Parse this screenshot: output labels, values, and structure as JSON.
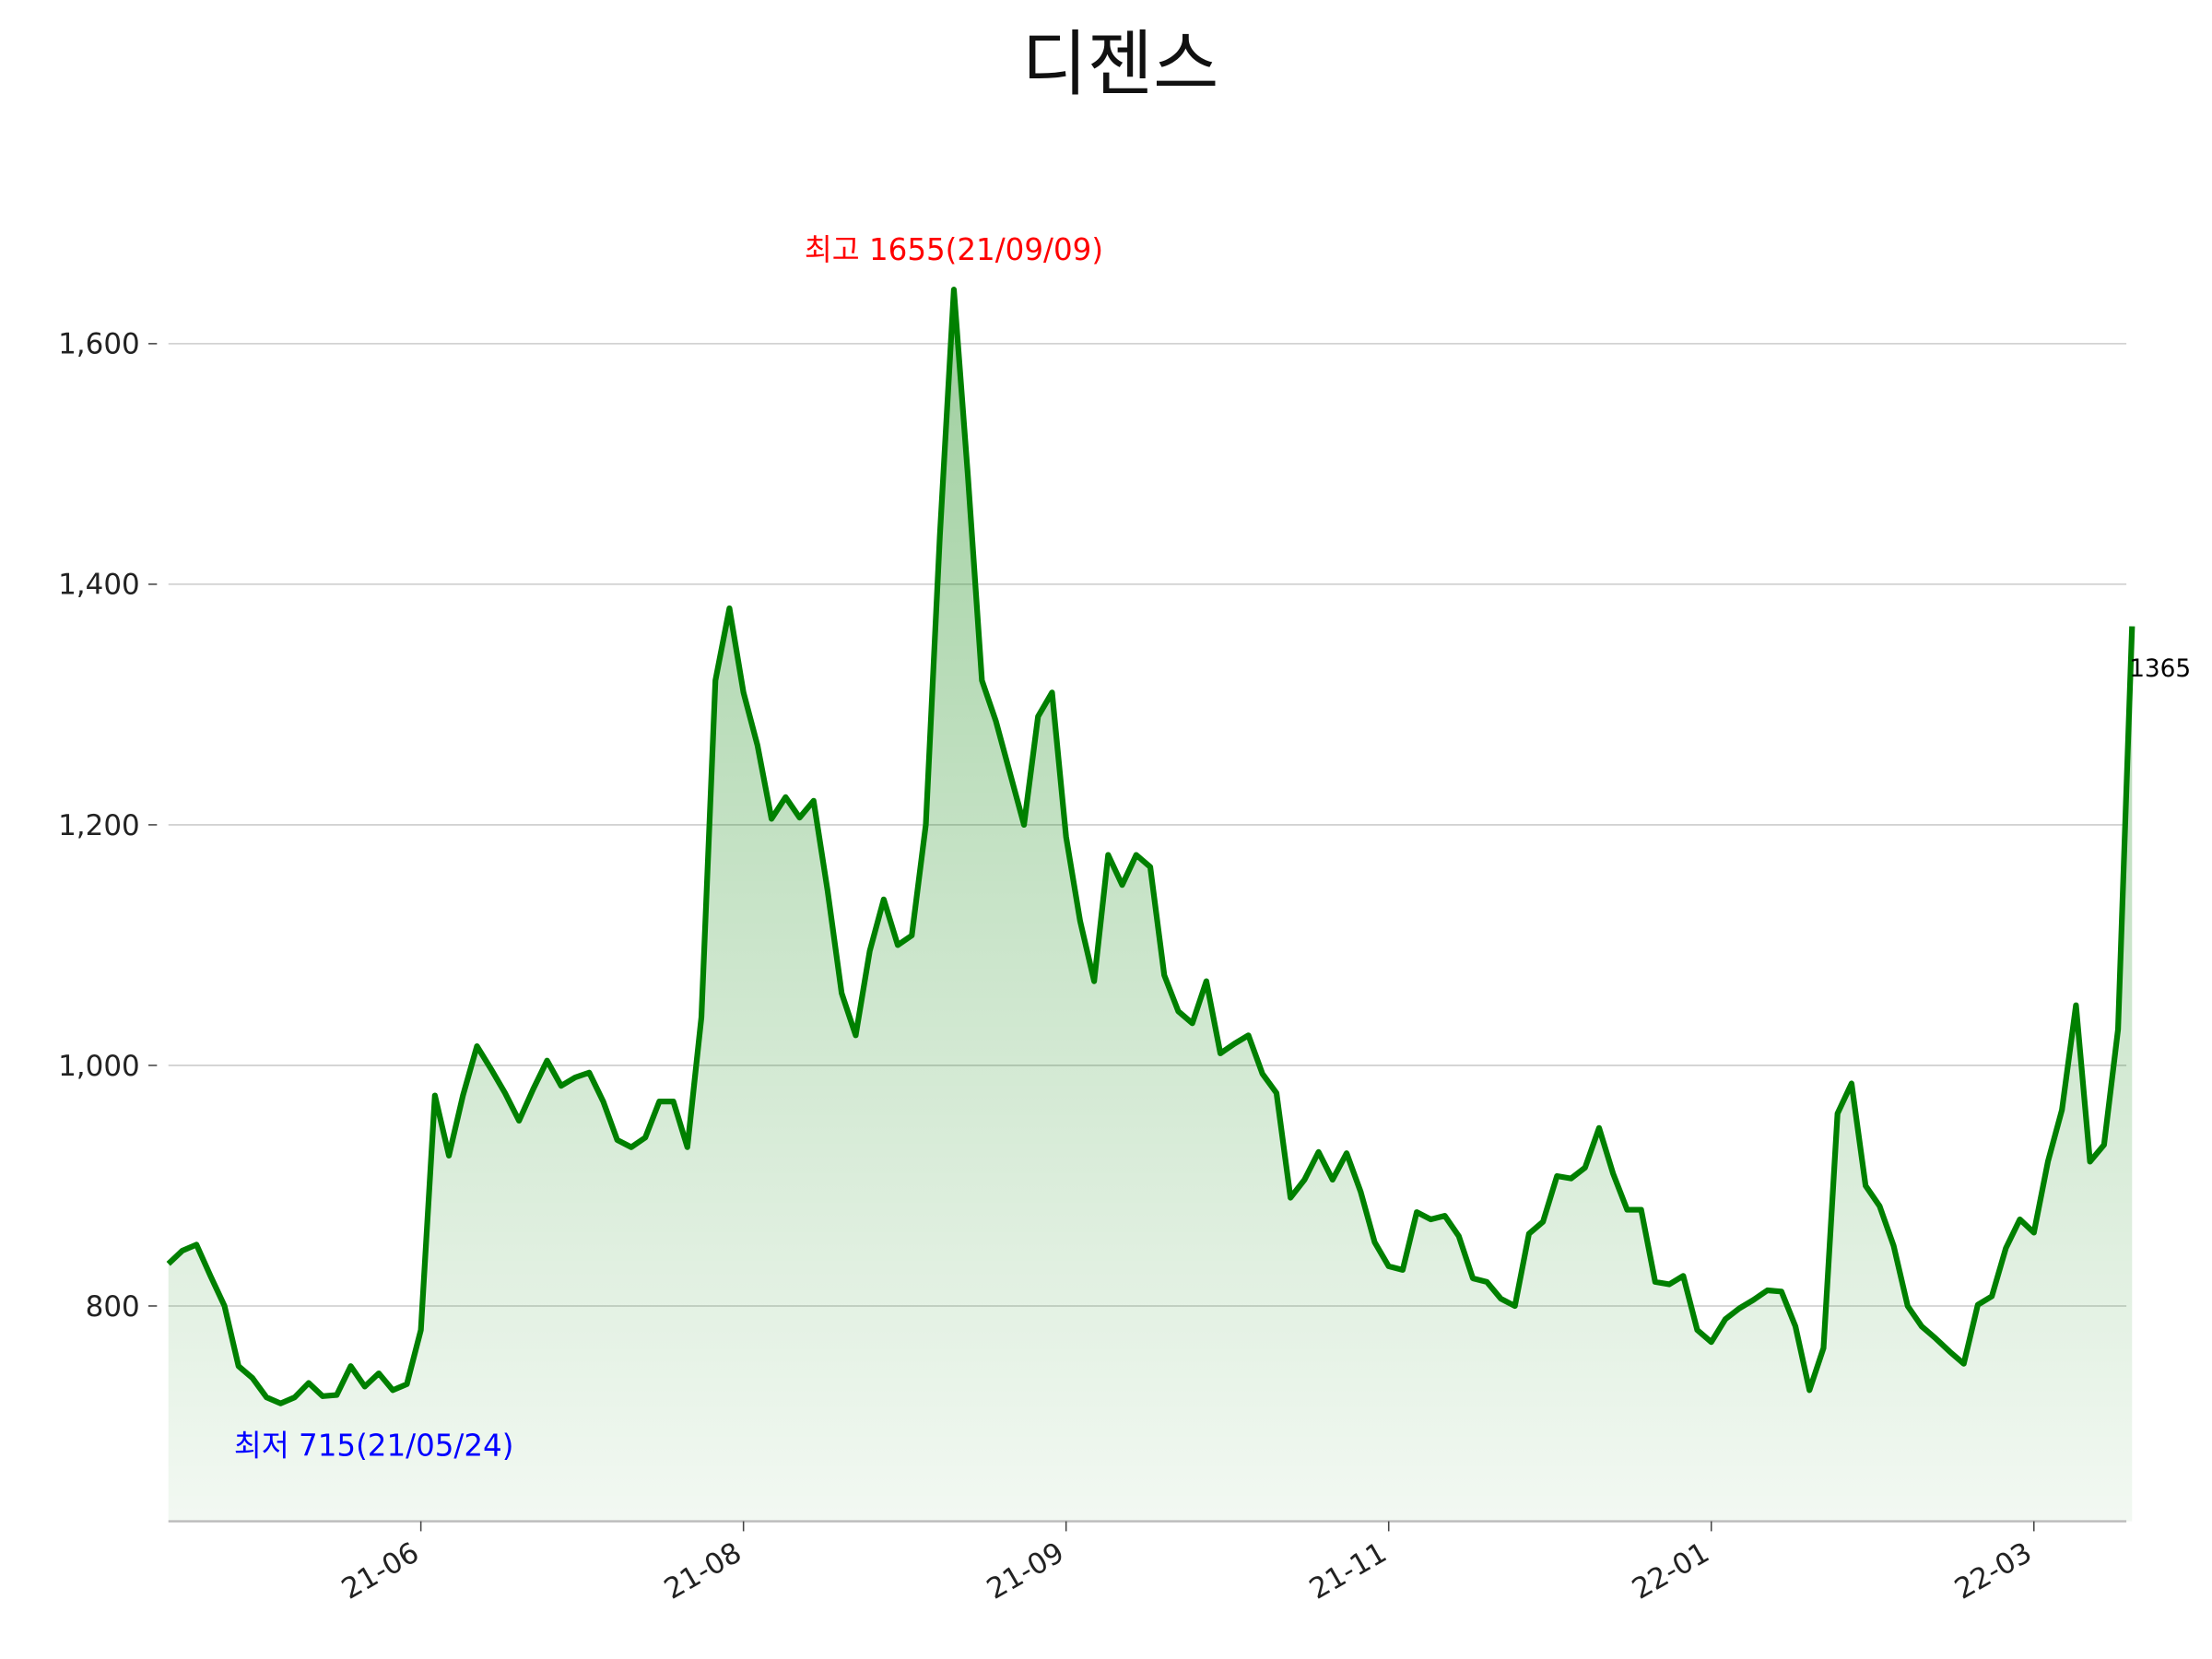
{
  "chart_data": {
    "type": "line",
    "title": "디젠스",
    "categories": [
      null,
      null,
      null,
      null,
      null,
      null,
      null,
      null,
      null,
      null,
      null,
      null,
      null,
      null,
      null,
      null,
      null,
      null,
      "21-06",
      null,
      null,
      null,
      null,
      null,
      null,
      null,
      null,
      null,
      null,
      null,
      null,
      null,
      null,
      null,
      null,
      null,
      null,
      null,
      null,
      null,
      null,
      "21-08",
      null,
      null,
      null,
      null,
      null,
      null,
      null,
      null,
      null,
      null,
      null,
      null,
      null,
      null,
      null,
      null,
      null,
      null,
      null,
      null,
      null,
      null,
      "21-09",
      null,
      null,
      null,
      null,
      null,
      null,
      null,
      null,
      null,
      null,
      null,
      null,
      null,
      null,
      null,
      null,
      null,
      null,
      null,
      null,
      null,
      null,
      "21-11",
      null,
      null,
      null,
      null,
      null,
      null,
      null,
      null,
      null,
      null,
      null,
      null,
      null,
      null,
      null,
      null,
      null,
      null,
      null,
      null,
      null,
      null,
      "22-01",
      null,
      null,
      null,
      null,
      null,
      null,
      null,
      null,
      null,
      null,
      null,
      null,
      null,
      null,
      null,
      null,
      null,
      null,
      null,
      null,
      null,
      null,
      "22-03",
      null,
      null,
      null,
      null,
      null,
      null,
      null
    ],
    "values": [
      835,
      846,
      851,
      825,
      800,
      750,
      740,
      724,
      719,
      724,
      736,
      725,
      726,
      750,
      733,
      744,
      730,
      735,
      780,
      975,
      925,
      975,
      1016,
      997,
      977,
      954,
      980,
      1004,
      983,
      990,
      994,
      970,
      938,
      932,
      940,
      970,
      970,
      932,
      1040,
      1320,
      1380,
      1310,
      1266,
      1205,
      1223,
      1206,
      1220,
      1145,
      1060,
      1025,
      1095,
      1138,
      1100,
      1108,
      1200,
      1440,
      1645,
      1490,
      1320,
      1286,
      1243,
      1200,
      1290,
      1310,
      1190,
      1120,
      1070,
      1175,
      1150,
      1175,
      1165,
      1075,
      1045,
      1035,
      1070,
      1010,
      1018,
      1025,
      993,
      977,
      890,
      905,
      928,
      905,
      927,
      895,
      853,
      833,
      830,
      878,
      872,
      875,
      858,
      823,
      820,
      806,
      800,
      860,
      870,
      908,
      906,
      915,
      948,
      910,
      880,
      880,
      820,
      818,
      825,
      780,
      770,
      789,
      798,
      805,
      813,
      812,
      783,
      730,
      765,
      960,
      985,
      900,
      883,
      850,
      800,
      783,
      773,
      762,
      752,
      801,
      808,
      848,
      872,
      861,
      920,
      963,
      1050,
      920,
      934,
      1030,
      1365
    ],
    "color": "#008000",
    "ylim": [
      621,
      1703
    ],
    "yticks": [
      800,
      {
        "value": 1000,
        "label": "1,000"
      },
      {
        "value": 1200,
        "label": "1,200"
      },
      {
        "value": 1400,
        "label": "1,400"
      },
      {
        "value": 1600,
        "label": "1,600"
      }
    ],
    "grid": true,
    "annotations": [
      {
        "text": "최고 1655(21/09/09)",
        "color": "#ff0000"
      },
      {
        "text": "최저 715(21/05/24)",
        "color": "#0000ff"
      },
      {
        "text": "1365",
        "color": "#000000"
      }
    ]
  }
}
